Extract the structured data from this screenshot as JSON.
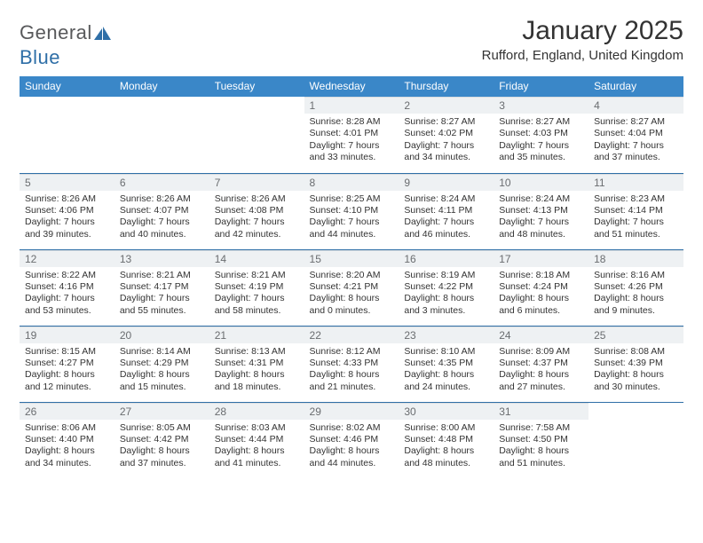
{
  "brand": {
    "text1": "General",
    "text2": "Blue"
  },
  "title": "January 2025",
  "subtitle": "Rufford, England, United Kingdom",
  "colors": {
    "header_bg": "#3a87c8",
    "header_text": "#ffffff",
    "daynum_bg": "#eef1f3",
    "daynum_text": "#6a6d70",
    "row_border": "#2f6fa7",
    "body_text": "#333333",
    "logo_gray": "#58595b",
    "logo_blue": "#2f6fa7"
  },
  "days_of_week": [
    "Sunday",
    "Monday",
    "Tuesday",
    "Wednesday",
    "Thursday",
    "Friday",
    "Saturday"
  ],
  "weeks": [
    [
      null,
      null,
      null,
      {
        "n": "1",
        "sr": "8:28 AM",
        "ss": "4:01 PM",
        "dl1": "Daylight: 7 hours",
        "dl2": "and 33 minutes."
      },
      {
        "n": "2",
        "sr": "8:27 AM",
        "ss": "4:02 PM",
        "dl1": "Daylight: 7 hours",
        "dl2": "and 34 minutes."
      },
      {
        "n": "3",
        "sr": "8:27 AM",
        "ss": "4:03 PM",
        "dl1": "Daylight: 7 hours",
        "dl2": "and 35 minutes."
      },
      {
        "n": "4",
        "sr": "8:27 AM",
        "ss": "4:04 PM",
        "dl1": "Daylight: 7 hours",
        "dl2": "and 37 minutes."
      }
    ],
    [
      {
        "n": "5",
        "sr": "8:26 AM",
        "ss": "4:06 PM",
        "dl1": "Daylight: 7 hours",
        "dl2": "and 39 minutes."
      },
      {
        "n": "6",
        "sr": "8:26 AM",
        "ss": "4:07 PM",
        "dl1": "Daylight: 7 hours",
        "dl2": "and 40 minutes."
      },
      {
        "n": "7",
        "sr": "8:26 AM",
        "ss": "4:08 PM",
        "dl1": "Daylight: 7 hours",
        "dl2": "and 42 minutes."
      },
      {
        "n": "8",
        "sr": "8:25 AM",
        "ss": "4:10 PM",
        "dl1": "Daylight: 7 hours",
        "dl2": "and 44 minutes."
      },
      {
        "n": "9",
        "sr": "8:24 AM",
        "ss": "4:11 PM",
        "dl1": "Daylight: 7 hours",
        "dl2": "and 46 minutes."
      },
      {
        "n": "10",
        "sr": "8:24 AM",
        "ss": "4:13 PM",
        "dl1": "Daylight: 7 hours",
        "dl2": "and 48 minutes."
      },
      {
        "n": "11",
        "sr": "8:23 AM",
        "ss": "4:14 PM",
        "dl1": "Daylight: 7 hours",
        "dl2": "and 51 minutes."
      }
    ],
    [
      {
        "n": "12",
        "sr": "8:22 AM",
        "ss": "4:16 PM",
        "dl1": "Daylight: 7 hours",
        "dl2": "and 53 minutes."
      },
      {
        "n": "13",
        "sr": "8:21 AM",
        "ss": "4:17 PM",
        "dl1": "Daylight: 7 hours",
        "dl2": "and 55 minutes."
      },
      {
        "n": "14",
        "sr": "8:21 AM",
        "ss": "4:19 PM",
        "dl1": "Daylight: 7 hours",
        "dl2": "and 58 minutes."
      },
      {
        "n": "15",
        "sr": "8:20 AM",
        "ss": "4:21 PM",
        "dl1": "Daylight: 8 hours",
        "dl2": "and 0 minutes."
      },
      {
        "n": "16",
        "sr": "8:19 AM",
        "ss": "4:22 PM",
        "dl1": "Daylight: 8 hours",
        "dl2": "and 3 minutes."
      },
      {
        "n": "17",
        "sr": "8:18 AM",
        "ss": "4:24 PM",
        "dl1": "Daylight: 8 hours",
        "dl2": "and 6 minutes."
      },
      {
        "n": "18",
        "sr": "8:16 AM",
        "ss": "4:26 PM",
        "dl1": "Daylight: 8 hours",
        "dl2": "and 9 minutes."
      }
    ],
    [
      {
        "n": "19",
        "sr": "8:15 AM",
        "ss": "4:27 PM",
        "dl1": "Daylight: 8 hours",
        "dl2": "and 12 minutes."
      },
      {
        "n": "20",
        "sr": "8:14 AM",
        "ss": "4:29 PM",
        "dl1": "Daylight: 8 hours",
        "dl2": "and 15 minutes."
      },
      {
        "n": "21",
        "sr": "8:13 AM",
        "ss": "4:31 PM",
        "dl1": "Daylight: 8 hours",
        "dl2": "and 18 minutes."
      },
      {
        "n": "22",
        "sr": "8:12 AM",
        "ss": "4:33 PM",
        "dl1": "Daylight: 8 hours",
        "dl2": "and 21 minutes."
      },
      {
        "n": "23",
        "sr": "8:10 AM",
        "ss": "4:35 PM",
        "dl1": "Daylight: 8 hours",
        "dl2": "and 24 minutes."
      },
      {
        "n": "24",
        "sr": "8:09 AM",
        "ss": "4:37 PM",
        "dl1": "Daylight: 8 hours",
        "dl2": "and 27 minutes."
      },
      {
        "n": "25",
        "sr": "8:08 AM",
        "ss": "4:39 PM",
        "dl1": "Daylight: 8 hours",
        "dl2": "and 30 minutes."
      }
    ],
    [
      {
        "n": "26",
        "sr": "8:06 AM",
        "ss": "4:40 PM",
        "dl1": "Daylight: 8 hours",
        "dl2": "and 34 minutes."
      },
      {
        "n": "27",
        "sr": "8:05 AM",
        "ss": "4:42 PM",
        "dl1": "Daylight: 8 hours",
        "dl2": "and 37 minutes."
      },
      {
        "n": "28",
        "sr": "8:03 AM",
        "ss": "4:44 PM",
        "dl1": "Daylight: 8 hours",
        "dl2": "and 41 minutes."
      },
      {
        "n": "29",
        "sr": "8:02 AM",
        "ss": "4:46 PM",
        "dl1": "Daylight: 8 hours",
        "dl2": "and 44 minutes."
      },
      {
        "n": "30",
        "sr": "8:00 AM",
        "ss": "4:48 PM",
        "dl1": "Daylight: 8 hours",
        "dl2": "and 48 minutes."
      },
      {
        "n": "31",
        "sr": "7:58 AM",
        "ss": "4:50 PM",
        "dl1": "Daylight: 8 hours",
        "dl2": "and 51 minutes."
      },
      null
    ]
  ],
  "labels": {
    "sunrise": "Sunrise:",
    "sunset": "Sunset:"
  }
}
